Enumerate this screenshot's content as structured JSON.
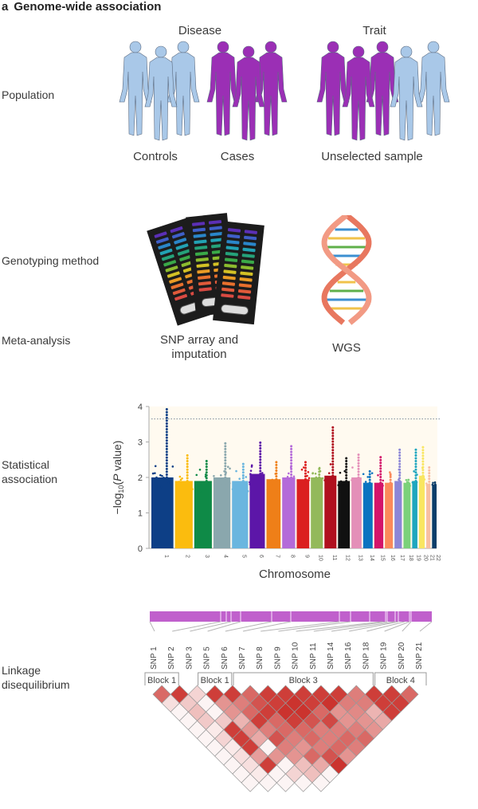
{
  "title": {
    "letter": "a",
    "text": "Genome-wide association"
  },
  "row_labels": {
    "population": "Population",
    "genotyping": "Genotyping method",
    "meta": "Meta-analysis",
    "statistical": [
      "Statistical",
      "association"
    ],
    "linkage": [
      "Linkage",
      "disequilibrium"
    ]
  },
  "population": {
    "disease_heading": "Disease",
    "trait_heading": "Trait",
    "groups": [
      {
        "label": "Controls",
        "figures": [
          "light-blue",
          "light-blue",
          "light-blue"
        ]
      },
      {
        "label": "Cases",
        "figures": [
          "purple",
          "purple",
          "purple"
        ]
      },
      {
        "label": "Unselected sample",
        "figures": [
          "purple",
          "purple",
          "purple",
          "light-blue",
          "light-blue"
        ]
      }
    ],
    "colors": {
      "light-blue": "#a9c8e8",
      "purple": "#9b2fb5"
    }
  },
  "genotyping": {
    "snp_label": [
      "SNP array and",
      "imputation"
    ],
    "wgs_label": "WGS"
  },
  "chart_data": {
    "type": "scatter",
    "subtype": "manhattan",
    "title": "",
    "xlabel": "Chromosome",
    "ylabel": "-log10(P value)",
    "ylim": [
      0,
      4
    ],
    "yticks": [
      0,
      1,
      2,
      3,
      4
    ],
    "significance_threshold": 3.65,
    "categories": [
      "1",
      "2",
      "3",
      "4",
      "5",
      "6",
      "7",
      "8",
      "9",
      "10",
      "11",
      "12",
      "13",
      "14",
      "15",
      "16",
      "17",
      "18",
      "19",
      "20",
      "21",
      "22"
    ],
    "colors": [
      "#0d3f86",
      "#fbbc0e",
      "#0f8a47",
      "#8aa7ad",
      "#6ab6df",
      "#5c16a8",
      "#ef7f18",
      "#b46ad9",
      "#db1f1f",
      "#93b95a",
      "#b0101e",
      "#111111",
      "#e48fb8",
      "#0a74c0",
      "#d3146a",
      "#fb8a5a",
      "#8c86d6",
      "#7bd17a",
      "#1ea6bf",
      "#f9e661",
      "#f8bfa3",
      "#0a3e6a"
    ],
    "base_values": [
      2.0,
      1.9,
      1.9,
      2.0,
      1.9,
      2.1,
      1.95,
      2.0,
      1.95,
      2.0,
      2.05,
      1.9,
      2.0,
      1.85,
      1.85,
      1.85,
      1.9,
      1.85,
      1.9,
      2.05,
      1.8,
      1.8
    ],
    "max_values": [
      3.95,
      2.7,
      2.5,
      3.0,
      2.45,
      3.05,
      2.5,
      2.9,
      2.5,
      2.3,
      3.45,
      2.55,
      2.7,
      2.2,
      2.6,
      2.1,
      2.8,
      1.95,
      2.8,
      2.9,
      2.35,
      1.85
    ]
  },
  "ld": {
    "snps": [
      "SNP 1",
      "SNP 2",
      "SNP 3",
      "SNP 5",
      "SNP 6",
      "SNP 7",
      "SNP 8",
      "SNP 9",
      "SNP 10",
      "SNP 11",
      "SNP 14",
      "SNP 16",
      "SNP 18",
      "SNP 19",
      "SNP 20",
      "SNP 21"
    ],
    "blocks": [
      {
        "label": "Block 1",
        "from": 0,
        "to": 1
      },
      {
        "label": "Block 1",
        "from": 3,
        "to": 4
      },
      {
        "label": "Block 3",
        "from": 5,
        "to": 12
      },
      {
        "label": "Block 4",
        "from": 13,
        "to": 15
      }
    ],
    "bar_color": "#c060cc",
    "matrix": [
      [
        0.7,
        0.9,
        0.2,
        0.9,
        0.9,
        0.7,
        0.9,
        0.9,
        0.9,
        0.9,
        0.9,
        0.6,
        0.9,
        0.9,
        0.7
      ],
      [
        0.15,
        0.25,
        0.05,
        0.5,
        0.6,
        0.8,
        0.9,
        0.95,
        0.9,
        0.95,
        0.6,
        0.6,
        0.9,
        0.9
      ],
      [
        0.05,
        0.3,
        0.05,
        0.5,
        0.7,
        0.9,
        0.95,
        0.95,
        0.7,
        0.5,
        0.55,
        0.35,
        0.9
      ],
      [
        0.05,
        0.25,
        0.25,
        0.35,
        0.9,
        0.7,
        0.9,
        0.8,
        0.85,
        0.5,
        0.5,
        0.4
      ],
      [
        0.05,
        0.1,
        0.9,
        0.5,
        0.6,
        0.7,
        0.7,
        0.6,
        0.6,
        0.6,
        0.5
      ],
      [
        0.05,
        0.2,
        0.9,
        0.4,
        0.8,
        0.6,
        0.7,
        0.6,
        0.7,
        0.7
      ],
      [
        0.05,
        0.1,
        0.9,
        0.05,
        0.6,
        0.5,
        0.6,
        0.7,
        0.6
      ],
      [
        0.05,
        0.15,
        0.45,
        0.5,
        0.5,
        0.7,
        0.8,
        0.5
      ],
      [
        0.05,
        0.15,
        0.9,
        0.05,
        0.3,
        0.4,
        0.95
      ],
      [
        0.05,
        0.1,
        0.05,
        0.2,
        0.3,
        0.05
      ],
      [
        0.05,
        0.05,
        0.05,
        0.05,
        0.05
      ]
    ]
  }
}
